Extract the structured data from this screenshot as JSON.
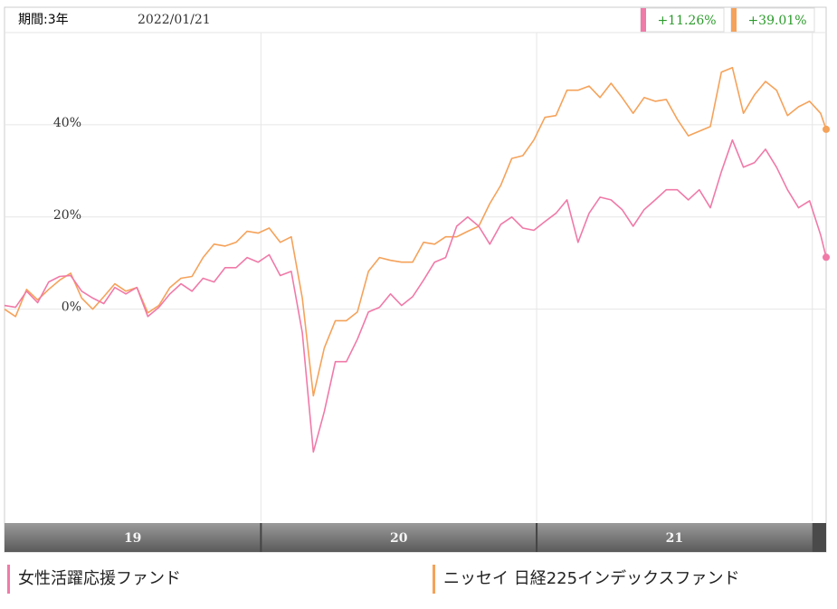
{
  "chart_data": {
    "type": "line",
    "period_label": "期間:3年",
    "date": "2022/01/21",
    "x": [
      2019.07,
      2019.11,
      2019.15,
      2019.19,
      2019.23,
      2019.27,
      2019.31,
      2019.35,
      2019.39,
      2019.43,
      2019.47,
      2019.51,
      2019.55,
      2019.59,
      2019.63,
      2019.67,
      2019.71,
      2019.75,
      2019.79,
      2019.83,
      2019.87,
      2019.91,
      2019.95,
      2019.99,
      2020.03,
      2020.07,
      2020.11,
      2020.15,
      2020.19,
      2020.23,
      2020.27,
      2020.31,
      2020.35,
      2020.39,
      2020.43,
      2020.47,
      2020.51,
      2020.55,
      2020.59,
      2020.63,
      2020.67,
      2020.71,
      2020.75,
      2020.79,
      2020.83,
      2020.87,
      2020.91,
      2020.95,
      2020.99,
      2021.03,
      2021.07,
      2021.11,
      2021.15,
      2021.19,
      2021.23,
      2021.27,
      2021.31,
      2021.35,
      2021.39,
      2021.43,
      2021.47,
      2021.51,
      2021.55,
      2021.59,
      2021.63,
      2021.67,
      2021.71,
      2021.75,
      2021.79,
      2021.83,
      2021.87,
      2021.91,
      2021.95,
      2021.99,
      2022.03,
      2022.05
    ],
    "series": [
      {
        "name": "女性活躍応援ファンド",
        "color": "#f07aa8",
        "change_label": "+11.26%",
        "values": [
          0.8,
          0.4,
          3.9,
          1.4,
          5.9,
          7.1,
          7.3,
          3.9,
          2.4,
          1.2,
          4.7,
          3.3,
          4.7,
          -1.6,
          0.4,
          3.3,
          5.5,
          3.9,
          6.7,
          5.9,
          9.0,
          9.0,
          11.2,
          10.2,
          11.8,
          7.3,
          8.2,
          -5.1,
          -31.0,
          -22.2,
          -11.4,
          -11.4,
          -6.5,
          -0.6,
          0.4,
          3.3,
          0.8,
          2.7,
          6.3,
          10.2,
          11.2,
          18.0,
          20.0,
          18.0,
          14.1,
          18.4,
          20.0,
          17.6,
          17.1,
          19.0,
          20.8,
          23.7,
          14.5,
          20.8,
          24.3,
          23.7,
          21.6,
          18.0,
          21.6,
          23.7,
          25.9,
          25.9,
          23.7,
          25.9,
          22.0,
          29.8,
          36.7,
          30.8,
          31.8,
          34.7,
          30.8,
          25.9,
          22.0,
          23.5,
          16.1,
          11.26
        ]
      },
      {
        "name": "ニッセイ 日経225インデックスファンド",
        "color": "#f5a25a",
        "change_label": "+39.01%",
        "values": [
          0,
          -1.6,
          4.3,
          2,
          4.3,
          6.3,
          7.8,
          2.4,
          0,
          2.7,
          5.5,
          3.9,
          4.7,
          -0.8,
          0.8,
          4.7,
          6.7,
          7.1,
          11.2,
          14.1,
          13.7,
          14.5,
          16.9,
          16.5,
          17.6,
          14.5,
          15.7,
          2.4,
          -18.8,
          -8.4,
          -2.5,
          -2.5,
          -0.6,
          8.2,
          11.2,
          10.6,
          10.2,
          10.2,
          14.5,
          14.1,
          15.7,
          15.7,
          16.9,
          18.0,
          22.9,
          26.9,
          32.7,
          33.3,
          36.7,
          41.6,
          42.0,
          47.5,
          47.5,
          48.4,
          45.9,
          49.0,
          45.9,
          42.5,
          45.9,
          45.1,
          45.5,
          41.2,
          37.6,
          38.6,
          39.6,
          51.4,
          52.4,
          42.5,
          46.5,
          49.4,
          47.5,
          42.0,
          43.9,
          45.1,
          42.5,
          39.01
        ]
      }
    ],
    "xlim": [
      2019.07,
      2022.05
    ],
    "xticks": [
      {
        "value": 2019,
        "label": "19"
      },
      {
        "value": 2020,
        "label": "20"
      },
      {
        "value": 2021,
        "label": "21"
      }
    ],
    "ylim": [
      -46,
      60
    ],
    "yticks": [
      {
        "value": 0,
        "label": "0%"
      },
      {
        "value": 20,
        "label": "20%"
      },
      {
        "value": 40,
        "label": "40%"
      }
    ],
    "grid": true
  }
}
